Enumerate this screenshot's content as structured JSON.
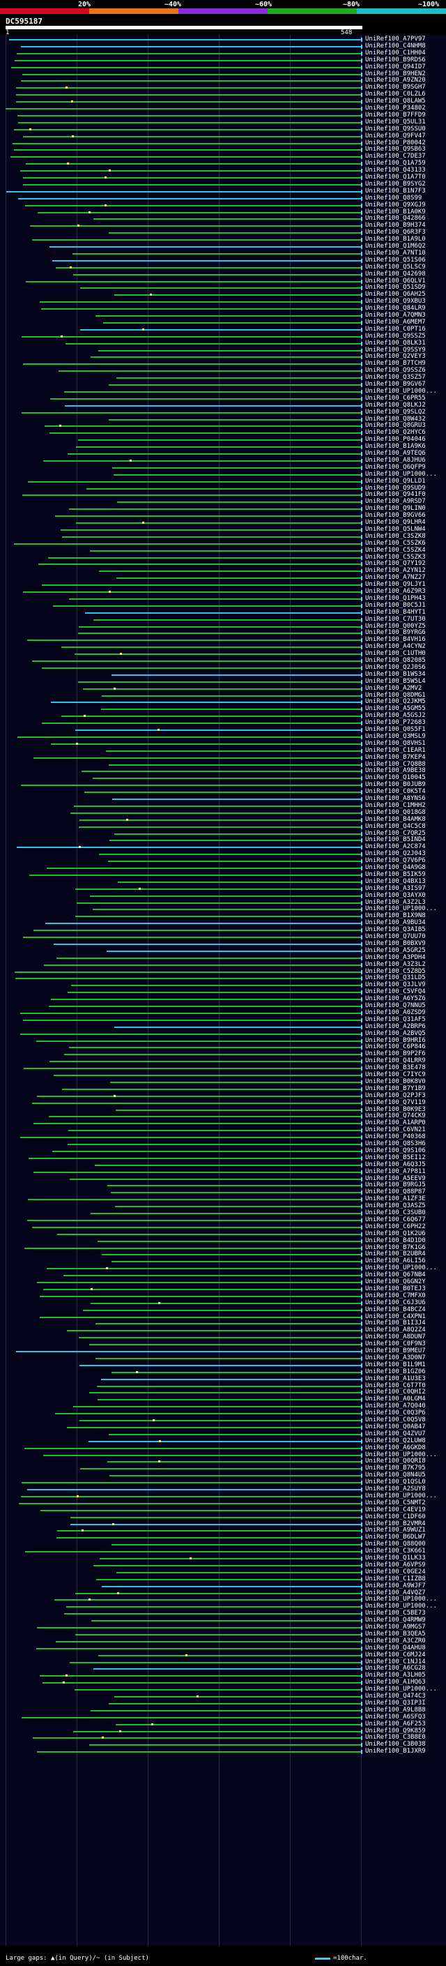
{
  "legend": {
    "labels": [
      "20%",
      "~40%",
      "~60%",
      "~80%",
      "~100%"
    ],
    "colors": [
      "#d8001c",
      "#e8751a",
      "#8a2be2",
      "#22aa22",
      "#22bbcc"
    ]
  },
  "query": {
    "name": "DC595187",
    "start": "1",
    "end": "548"
  },
  "footer": {
    "gaps_text": "Large gaps: ▲(in Query)/~ (in Subject)",
    "scale_text": "=100char."
  },
  "hits": [
    "UniRef100_A7PV97",
    "UniRef100_C4NHM8",
    "UniRef100_C1HH04",
    "UniRef100_B9RDS6",
    "UniRef100_Q94ID7",
    "UniRef100_B9HEN2",
    "UniRef100_A9ZN20",
    "UniRef100_B9SGH7",
    "UniRef100_C0LZL6",
    "UniRef100_Q8LAW5",
    "UniRef100_P34802",
    "UniRef100_B7FFD9",
    "UniRef100_Q5UL31",
    "UniRef100_Q9SSU0",
    "UniRef100_Q9FV47",
    "UniRef100_P80042",
    "UniRef100_Q9SB63",
    "UniRef100_C7DE37",
    "UniRef100_Q1A759",
    "UniRef100_Q43133",
    "UniRef100_Q1A7T0",
    "UniRef100_B9SYG2",
    "UniRef100_B1N7F3",
    "UniRef100_Q8S99",
    "UniRef100_Q9XGJ9",
    "UniRef100_B1A0K9",
    "UniRef100_Q42866",
    "UniRef100_B9H374",
    "UniRef100_Q6R3F3",
    "UniRef100_B1A9L0",
    "UniRef100_Q1M6Q2",
    "UniRef100_A7NT10",
    "UniRef100_Q51S06",
    "UniRef100_Q5LSC9",
    "UniRef100_Q42698",
    "UniRef100_Q6QLV1",
    "UniRef100_Q51SD9",
    "UniRef100_Q6AH25",
    "UniRef100_Q9XBU3",
    "UniRef100_Q84LR9",
    "UniRef100_A7QMN3",
    "UniRef100_A6MEM7",
    "UniRef100_C0PT16",
    "UniRef100_Q9SSZ5",
    "UniRef100_Q8LK31",
    "UniRef100_Q9SSY9",
    "UniRef100_Q2VEY3",
    "UniRef100_B7TCH9",
    "UniRef100_Q9SSZ6",
    "UniRef100_Q3SZ57",
    "UniRef100_B9GV67",
    "UniRef100_UP1000...",
    "UniRef100_C6PR55",
    "UniRef100_Q8LKJ2",
    "UniRef100_Q9SLQ2",
    "UniRef100_Q8W432",
    "UniRef100_Q8GRU3",
    "UniRef100_Q2HYC6",
    "UniRef100_P04046",
    "UniRef100_B1A9K6",
    "UniRef100_A9TEQ6",
    "UniRef100_A8JHU6",
    "UniRef100_Q6QFP9",
    "UniRef100_UP1000...",
    "UniRef100_Q9LLD1",
    "UniRef100_Q9SUD9",
    "UniRef100_Q941F0",
    "UniRef100_A9RSD7",
    "UniRef100_Q9LIN0",
    "UniRef100_B9GV66",
    "UniRef100_Q9LHR4",
    "UniRef100_Q5LNW4",
    "UniRef100_C3SZK8",
    "UniRef100_C5SZK6",
    "UniRef100_C5SZK4",
    "UniRef100_C5SZK3",
    "UniRef100_Q7Y192",
    "UniRef100_A2YN12",
    "UniRef100_A7NZ27",
    "UniRef100_Q9LJY1",
    "UniRef100_A6Z9R3",
    "UniRef100_Q1PH43",
    "UniRef100_B0C5J1",
    "UniRef100_B4HYT1",
    "UniRef100_C7UT30",
    "UniRef100_Q00YZ5",
    "UniRef100_B9YRG6",
    "UniRef100_B4VH16",
    "UniRef100_A4CYN2",
    "UniRef100_C1UTH0",
    "UniRef100_Q82085",
    "UniRef100_Q2J0S6",
    "UniRef100_B1WS34",
    "UniRef100_B5W5L4",
    "UniRef100_A2MV2",
    "UniRef100_Q8DMG1",
    "UniRef100_Q2JKM5",
    "UniRef100_A5GM55",
    "UniRef100_A5GSJ2",
    "UniRef100_P72683",
    "UniRef100_Q0S5F1",
    "UniRef100_Q3MSL9",
    "UniRef100_Q8VHS1",
    "UniRef100_C1EAR1",
    "UniRef100_B7KEP4",
    "UniRef100_C7Q8B8",
    "UniRef100_A9BE38",
    "UniRef100_Q10045",
    "UniRef100_B0JUB9",
    "UniRef100_C0K5T4",
    "UniRef100_A8YNS6",
    "UniRef100_C1MHH2",
    "UniRef100_Q018G8",
    "UniRef100_B4AMK8",
    "UniRef100_Q4C5C8",
    "UniRef100_C7QR25",
    "UniRef100_B5IND4",
    "UniRef100_A2C874",
    "UniRef100_Q2J043",
    "UniRef100_Q7V6P6",
    "UniRef100_Q4A9G8",
    "UniRef100_B5IK59",
    "UniRef100_Q4BX13",
    "UniRef100_A3IS97",
    "UniRef100_Q3AYX0",
    "UniRef100_A3Z2L3",
    "UniRef100_UP1000...",
    "UniRef100_B1X9N8",
    "UniRef100_A9BU34",
    "UniRef100_Q3AIB5",
    "UniRef100_Q7UU70",
    "UniRef100_B0BXV9",
    "UniRef100_A5GR25",
    "UniRef100_A3PDH4",
    "UniRef100_A3Z3L2",
    "UniRef100_C5Z8D5",
    "UniRef100_Q31LD5",
    "UniRef100_Q3JLV9",
    "UniRef100_C5VFQ4",
    "UniRef100_A6Y5Z6",
    "UniRef100_Q7NNU5",
    "UniRef100_A0ZSD9",
    "UniRef100_Q31AF5",
    "UniRef100_A2BRP6",
    "UniRef100_A2BVQ5",
    "UniRef100_B9HRI6",
    "UniRef100_C6P846",
    "UniRef100_B9P2F6",
    "UniRef100_Q4LRR9",
    "UniRef100_B3E478",
    "UniRef100_C7IYC9",
    "UniRef100_B0K8V0",
    "UniRef100_B7Y1B9",
    "UniRef100_Q2PJF3",
    "UniRef100_Q7V119",
    "UniRef100_B0K9E3",
    "UniRef100_Q74CK9",
    "UniRef100_A1ARP0",
    "UniRef100_C6VN21",
    "UniRef100_P40368",
    "UniRef100_Q8S3H6",
    "UniRef100_Q9S106",
    "UniRef100_B5EI12",
    "UniRef100_A6Q3J5",
    "UniRef100_A7P811",
    "UniRef100_A5EEV9",
    "UniRef100_B9RGJ5",
    "UniRef100_Q88P87",
    "UniRef100_A1ZF3E",
    "UniRef100_Q3ASZ5",
    "UniRef100_C3SUB0",
    "UniRef100_C6Q677",
    "UniRef100_C6PH22",
    "UniRef100_Q1K2U6",
    "UniRef100_B4D1D0",
    "UniRef100_B7K1G6",
    "UniRef100_B2UBR4",
    "UniRef100_A6LI56",
    "UniRef100_UP1000...",
    "UniRef100_Q67NB4",
    "UniRef100_Q6GN2Y",
    "UniRef100_B0TEJ3",
    "UniRef100_C7MFX0",
    "UniRef100_C6J3U6",
    "UniRef100_B4BCZ4",
    "UniRef100_C4XPN1",
    "UniRef100_B1I3J4",
    "UniRef100_A8Q2Z4",
    "UniRef100_A8DUN7",
    "UniRef100_C0F9N3",
    "UniRef100_B9MEU7",
    "UniRef100_A3D0N7",
    "UniRef100_B1L9M1",
    "UniRef100_B1GZ06",
    "UniRef100_A1U3E3",
    "UniRef100_C6T7T0",
    "UniRef100_C0QHI2",
    "UniRef100_A0LGM4",
    "UniRef100_A7Q040",
    "UniRef100_C0Q3P6",
    "UniRef100_C0Q5V8",
    "UniRef100_Q0AB47",
    "UniRef100_Q4ZVU7",
    "UniRef100_Q2LUW8",
    "UniRef100_A6GKD8",
    "UniRef100_UP1000...",
    "UniRef100_Q0QRI8",
    "UniRef100_B7K795",
    "UniRef100_Q8N4U5",
    "UniRef100_Q1QSL0",
    "UniRef100_A2SUY8",
    "UniRef100_UP1000...",
    "UniRef100_C5NMT2",
    "UniRef100_C4EV19",
    "UniRef100_C1DF60",
    "UniRef100_B2VMR4",
    "UniRef100_A9WUZ1",
    "UniRef100_B6DLW7",
    "UniRef100_Q88Q00",
    "UniRef100_C3K661",
    "UniRef100_Q1LK33",
    "UniRef100_A6VPS9",
    "UniRef100_C0GE24",
    "UniRef100_C1IZB8",
    "UniRef100_A9WJF7",
    "UniRef100_A4VQZ7",
    "UniRef100_UP1000...",
    "UniRef100_UP1000...",
    "UniRef100_C5BE73",
    "UniRef100_Q4RMW9",
    "UniRef100_A9MGS7",
    "UniRef100_B3QEA5",
    "UniRef100_A3CZR0",
    "UniRef100_Q4AHU8",
    "UniRef100_C6MJ24",
    "UniRef100_C1NJ14",
    "UniRef100_A6CG28",
    "UniRef100_A3LH05",
    "UniRef100_A1HQ63",
    "UniRef100_UP1000...",
    "UniRef100_Q474C3",
    "UniRef100_Q3IP3I",
    "UniRef100_A9L8B8",
    "UniRef100_A6SFQ3",
    "UniRef100_A6F253",
    "UniRef100_Q9K859",
    "UniRef100_C3B8E0",
    "UniRef100_C3B038",
    "UniRef100_B1JXR9"
  ]
}
